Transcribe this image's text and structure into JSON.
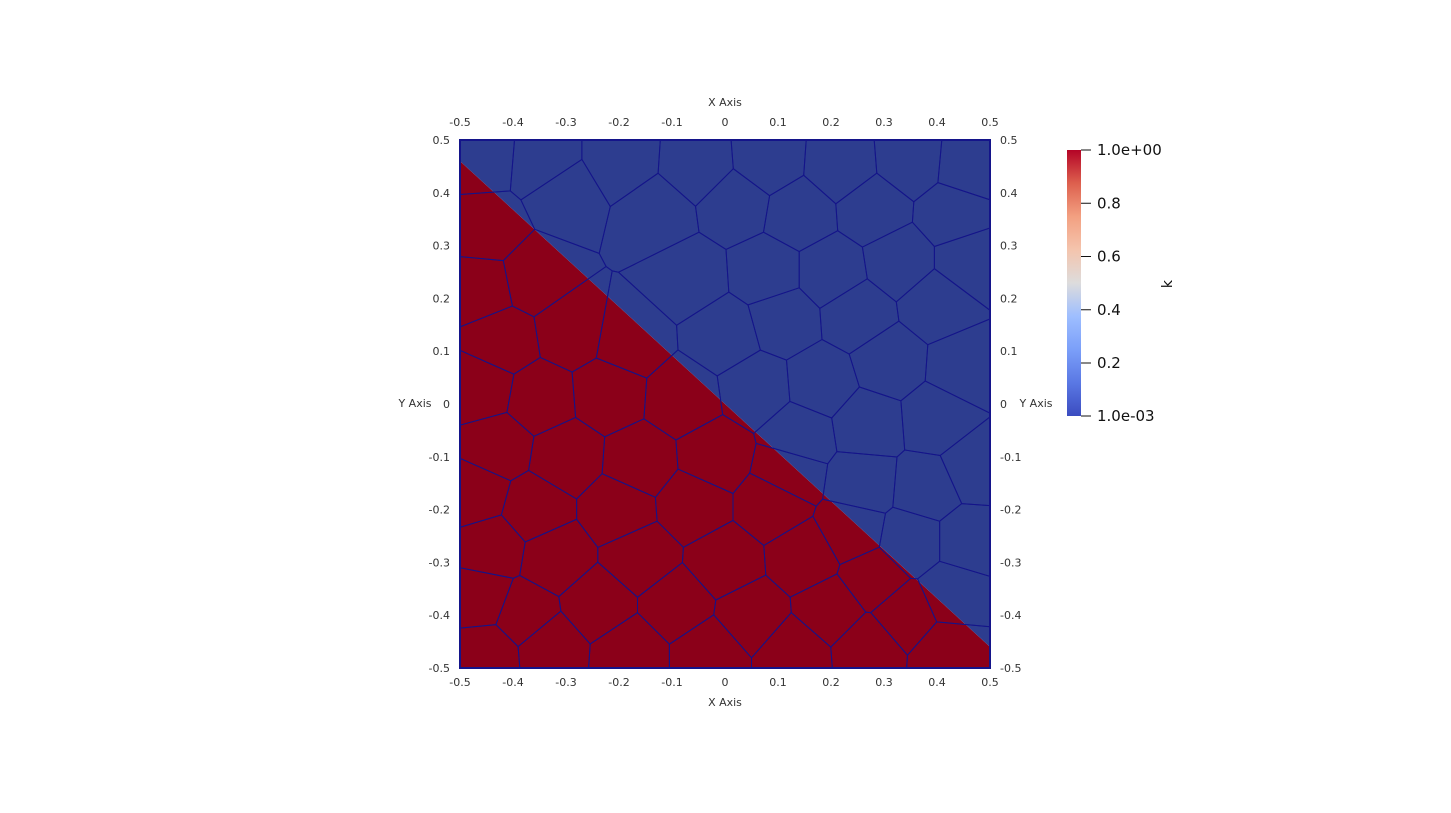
{
  "chart_data": {
    "type": "heatmap",
    "title": "",
    "xlabel": "X Axis",
    "ylabel": "Y Axis",
    "xlim": [
      -0.5,
      0.5
    ],
    "ylim": [
      -0.5,
      0.5
    ],
    "x_ticks": [
      -0.5,
      -0.4,
      -0.3,
      -0.2,
      -0.1,
      0,
      0.1,
      0.2,
      0.3,
      0.4,
      0.5
    ],
    "y_ticks": [
      -0.5,
      -0.4,
      -0.3,
      -0.2,
      -0.1,
      0,
      0.1,
      0.2,
      0.3,
      0.4,
      0.5
    ],
    "x_tick_labels": [
      "-0.5",
      "-0.4",
      "-0.3",
      "-0.2",
      "-0.1",
      "0",
      "0.1",
      "0.2",
      "0.3",
      "0.4",
      "0.5"
    ],
    "y_tick_labels": [
      "-0.5",
      "-0.4",
      "-0.3",
      "-0.2",
      "-0.1",
      "0",
      "0.1",
      "0.2",
      "0.3",
      "0.4",
      "0.5"
    ],
    "field_name": "k",
    "colormap": "coolwarm",
    "color_range": [
      0.001,
      1.0
    ],
    "colorbar_ticks": [
      1.0,
      0.8,
      0.6,
      0.4,
      0.2,
      0.001
    ],
    "colorbar_tick_labels": [
      "1.0e+00",
      "0.8",
      "0.6",
      "0.4",
      "0.2",
      "1.0e-03"
    ],
    "regions": [
      {
        "value": 1.0,
        "color": "#8b0019",
        "polygon": [
          [
            -0.5,
            0.46
          ],
          [
            -0.5,
            -0.5
          ],
          [
            0.5,
            -0.5
          ],
          [
            0.5,
            -0.46
          ]
        ]
      },
      {
        "value": 0.001,
        "color": "#2d3d8f",
        "polygon": [
          [
            -0.5,
            0.46
          ],
          [
            -0.5,
            0.5
          ],
          [
            0.5,
            0.5
          ],
          [
            0.5,
            -0.46
          ]
        ]
      }
    ],
    "mesh_edge_color": "#14148a",
    "mesh_points": [
      [
        -0.45,
        -0.47
      ],
      [
        -0.33,
        -0.46
      ],
      [
        -0.18,
        -0.47
      ],
      [
        -0.03,
        -0.47
      ],
      [
        0.13,
        -0.47
      ],
      [
        0.27,
        -0.46
      ],
      [
        0.42,
        -0.47
      ],
      [
        -0.46,
        -0.37
      ],
      [
        -0.38,
        -0.4
      ],
      [
        -0.24,
        -0.38
      ],
      [
        -0.09,
        -0.38
      ],
      [
        0.05,
        -0.4
      ],
      [
        0.2,
        -0.39
      ],
      [
        0.34,
        -0.4
      ],
      [
        -0.44,
        -0.27
      ],
      [
        -0.32,
        -0.29
      ],
      [
        -0.16,
        -0.29
      ],
      [
        0.0,
        -0.3
      ],
      [
        0.15,
        -0.29
      ],
      [
        0.28,
        -0.33
      ],
      [
        -0.47,
        -0.17
      ],
      [
        -0.36,
        -0.2
      ],
      [
        -0.2,
        -0.2
      ],
      [
        -0.06,
        -0.19
      ],
      [
        0.09,
        -0.19
      ],
      [
        0.24,
        -0.24
      ],
      [
        -0.43,
        -0.08
      ],
      [
        -0.3,
        -0.1
      ],
      [
        -0.16,
        -0.11
      ],
      [
        -0.02,
        -0.1
      ],
      [
        0.12,
        -0.13
      ],
      [
        -0.46,
        0.03
      ],
      [
        -0.35,
        0.01
      ],
      [
        -0.22,
        0.02
      ],
      [
        -0.08,
        0.01
      ],
      [
        -0.42,
        0.12
      ],
      [
        -0.29,
        0.14
      ],
      [
        -0.18,
        0.12
      ],
      [
        -0.46,
        0.22
      ],
      [
        -0.36,
        0.24
      ],
      [
        -0.45,
        0.33
      ],
      [
        -0.46,
        0.47
      ],
      [
        -0.34,
        0.46
      ],
      [
        -0.2,
        0.46
      ],
      [
        -0.05,
        0.45
      ],
      [
        0.08,
        0.46
      ],
      [
        0.22,
        0.45
      ],
      [
        0.35,
        0.46
      ],
      [
        0.46,
        0.45
      ],
      [
        -0.3,
        0.4
      ],
      [
        -0.13,
        0.36
      ],
      [
        0.02,
        0.38
      ],
      [
        0.14,
        0.36
      ],
      [
        0.28,
        0.37
      ],
      [
        0.43,
        0.36
      ],
      [
        -0.07,
        0.24
      ],
      [
        0.08,
        0.25
      ],
      [
        0.2,
        0.25
      ],
      [
        0.33,
        0.27
      ],
      [
        0.46,
        0.27
      ],
      [
        0.0,
        0.13
      ],
      [
        0.11,
        0.16
      ],
      [
        0.25,
        0.17
      ],
      [
        0.4,
        0.19
      ],
      [
        0.06,
        0.03
      ],
      [
        0.18,
        0.04
      ],
      [
        0.31,
        0.08
      ],
      [
        0.45,
        0.07
      ],
      [
        0.14,
        -0.06
      ],
      [
        0.27,
        -0.04
      ],
      [
        0.4,
        -0.03
      ],
      [
        0.26,
        -0.15
      ],
      [
        0.38,
        -0.16
      ],
      [
        0.47,
        -0.12
      ],
      [
        0.35,
        -0.26
      ],
      [
        0.46,
        -0.26
      ],
      [
        0.43,
        -0.36
      ]
    ]
  }
}
